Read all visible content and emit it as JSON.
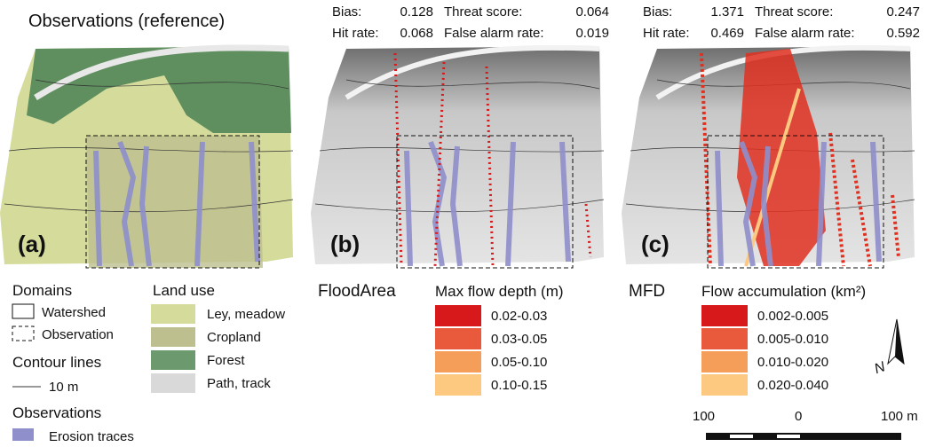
{
  "panels": [
    {
      "label": "(a)",
      "title": "Observations (reference)"
    },
    {
      "label": "(b)",
      "stats": [
        {
          "name": "Bias:",
          "value": 0.128
        },
        {
          "name": "Threat score:",
          "value": 0.064
        },
        {
          "name": "Hit rate:",
          "value": 0.068
        },
        {
          "name": "False alarm rate:",
          "value": 0.019
        }
      ]
    },
    {
      "label": "(c)",
      "stats": [
        {
          "name": "Bias:",
          "value": 1.371
        },
        {
          "name": "Threat score:",
          "value": 0.247
        },
        {
          "name": "Hit rate:",
          "value": 0.469
        },
        {
          "name": "False alarm rate:",
          "value": 0.592
        }
      ]
    }
  ],
  "legend": {
    "domains": {
      "title": "Domains",
      "items": [
        "Watershed",
        "Observation"
      ]
    },
    "contours": {
      "title": "Contour lines",
      "item": "10 m"
    },
    "observations": {
      "title": "Observations",
      "item": "Erosion traces"
    },
    "land_use": {
      "title": "Land use",
      "items": [
        "Ley, meadow",
        "Cropland",
        "Forest",
        "Path, track"
      ]
    },
    "floodarea": {
      "model": "FloodArea",
      "title": "Max flow depth (m)",
      "items": [
        "0.02-0.03",
        "0.03-0.05",
        "0.05-0.10",
        "0.10-0.15"
      ]
    },
    "mfd": {
      "model": "MFD",
      "title": "Flow accumulation (km²)",
      "items": [
        "0.002-0.005",
        "0.005-0.010",
        "0.010-0.020",
        "0.020-0.040"
      ]
    }
  },
  "north": "N",
  "scale_bar": [
    "100",
    "0",
    "100 m"
  ]
}
